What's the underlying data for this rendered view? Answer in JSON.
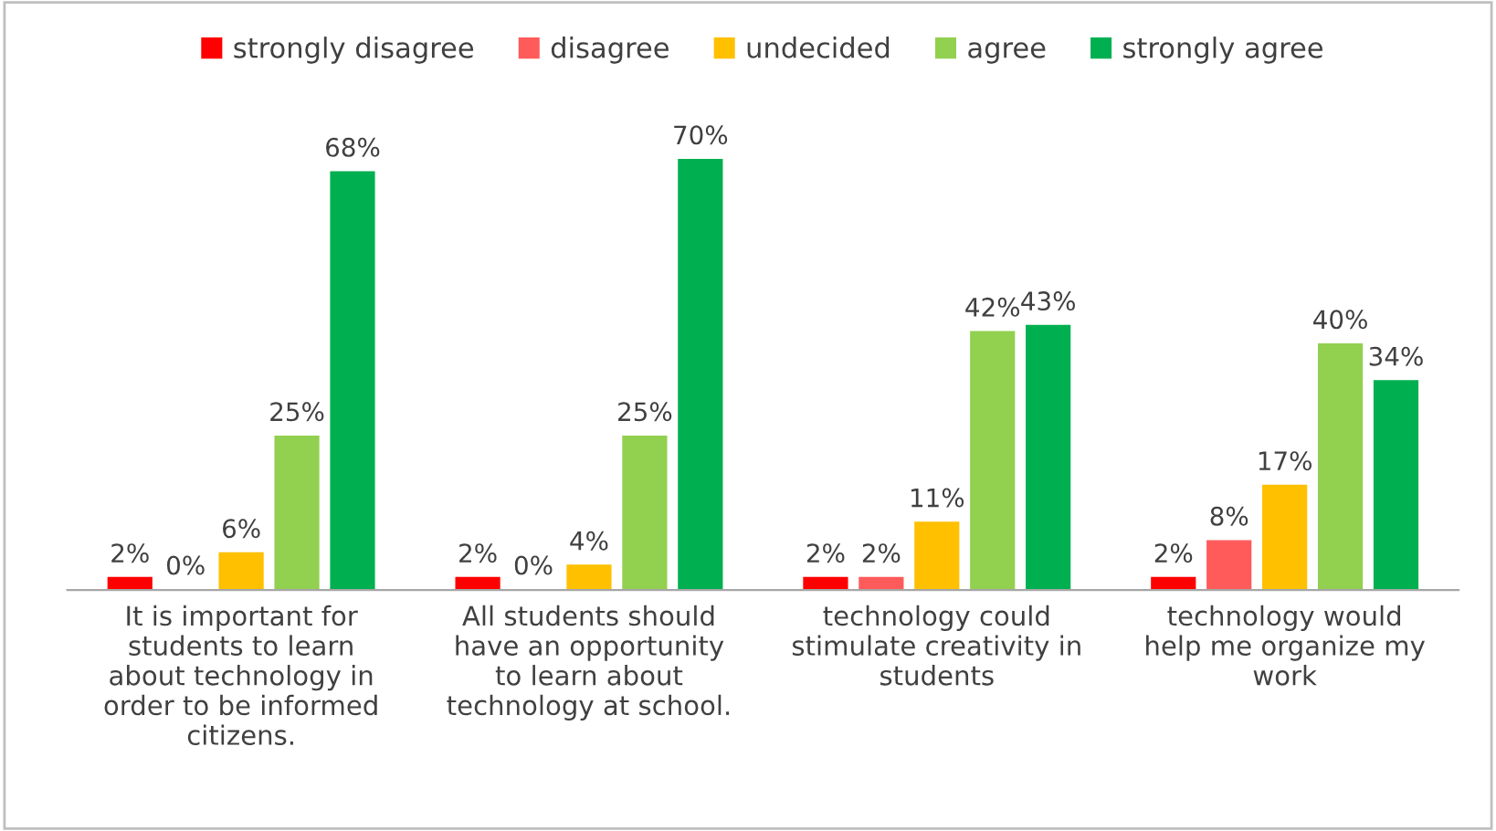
{
  "chart_data": {
    "type": "bar",
    "categories": [
      "It is important for\nstudents to learn\nabout technology in\norder to be informed\ncitizens.",
      "All students should\nhave an opportunity\nto learn about\ntechnology at school.",
      "technology could\nstimulate creativity in\nstudents",
      "technology would\nhelp me organize my\nwork"
    ],
    "series": [
      {
        "name": "strongly disagree",
        "color": "#ff0000",
        "values": [
          2,
          2,
          2,
          2
        ],
        "value_labels": [
          "2%",
          "2%",
          "2%",
          "2%"
        ]
      },
      {
        "name": "disagree",
        "color": "#ff5b5b",
        "values": [
          0,
          0,
          2,
          8
        ],
        "value_labels": [
          "0%",
          "0%",
          "2%",
          "8%"
        ]
      },
      {
        "name": "undecided",
        "color": "#ffc000",
        "values": [
          6,
          4,
          11,
          17
        ],
        "value_labels": [
          "6%",
          "4%",
          "11%",
          "17%"
        ]
      },
      {
        "name": "agree",
        "color": "#92d050",
        "values": [
          25,
          25,
          42,
          40
        ],
        "value_labels": [
          "25%",
          "25%",
          "42%",
          "40%"
        ]
      },
      {
        "name": "strongly agree",
        "color": "#00b050",
        "values": [
          68,
          70,
          43,
          34
        ],
        "value_labels": [
          "68%",
          "70%",
          "43%",
          "34%"
        ]
      }
    ],
    "legend": "top"
  }
}
